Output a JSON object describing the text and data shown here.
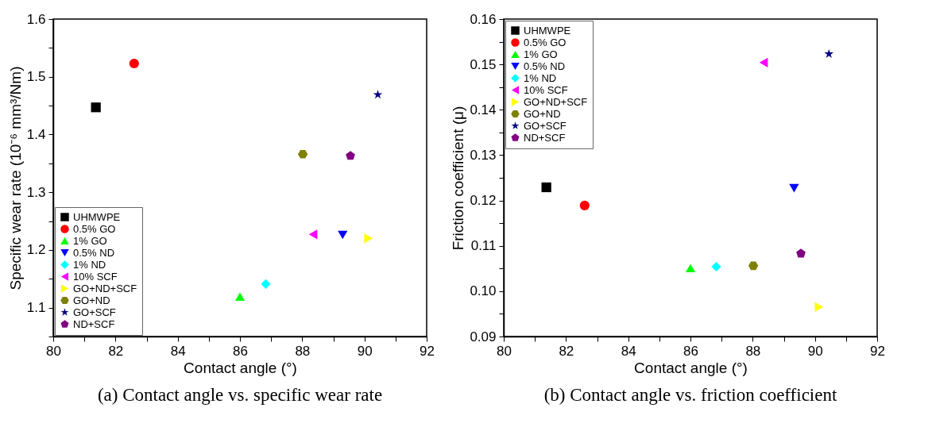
{
  "chart_data": [
    {
      "type": "scatter",
      "xlabel": "Contact angle (°)",
      "ylabel": "Specific wear rate (10⁻⁶ mm³/Nm)",
      "annotations": [
        "(a) Contact angle vs. specific wear rate"
      ],
      "xlim": [
        80,
        92
      ],
      "xticks": [
        80,
        {
          "value": 81,
          "label": null
        },
        82,
        {
          "value": 83,
          "label": null
        },
        84,
        {
          "value": 85,
          "label": null
        },
        86,
        {
          "value": 87,
          "label": null
        },
        88,
        {
          "value": 89,
          "label": null
        },
        90,
        {
          "value": 91,
          "label": null
        },
        92
      ],
      "ylim": [
        1.05,
        1.6
      ],
      "yticks": [
        {
          "value": 1.05,
          "label": null
        },
        1.1,
        {
          "value": 1.15,
          "label": null
        },
        1.2,
        {
          "value": 1.25,
          "label": null
        },
        1.3,
        {
          "value": 1.35,
          "label": null
        },
        1.4,
        {
          "value": 1.45,
          "label": null
        },
        1.5,
        {
          "value": 1.55,
          "label": null
        },
        1.6
      ],
      "grid": false,
      "legend": "bottom left",
      "series": [
        {
          "name": "UHMWPE",
          "color": "#000000",
          "marker": "square",
          "x": [
            81.37
          ],
          "values": [
            1.447
          ]
        },
        {
          "name": "0.5% GO",
          "color": "#ff0000",
          "marker": "circle",
          "x": [
            82.6
          ],
          "values": [
            1.523
          ]
        },
        {
          "name": "1% GO",
          "color": "#00ff00",
          "marker": "triangle-up",
          "x": [
            86.0
          ],
          "values": [
            1.119
          ]
        },
        {
          "name": "0.5% ND",
          "color": "#0000ff",
          "marker": "triangle-down",
          "x": [
            89.3
          ],
          "values": [
            1.226
          ]
        },
        {
          "name": "1% ND",
          "color": "#00ffff",
          "marker": "diamond",
          "x": [
            86.83
          ],
          "values": [
            1.141
          ]
        },
        {
          "name": "10% SCF",
          "color": "#ff00ff",
          "marker": "triangle-left",
          "x": [
            88.35
          ],
          "values": [
            1.227
          ]
        },
        {
          "name": "GO+ND+SCF",
          "color": "#ffff00",
          "marker": "triangle-right",
          "x": [
            90.13
          ],
          "values": [
            1.22
          ]
        },
        {
          "name": "GO+ND",
          "color": "#808000",
          "x": [
            88.02
          ],
          "values": [
            1.366
          ]
        },
        {
          "name": "GO+SCF",
          "color": "#000080",
          "marker": "star",
          "x": [
            90.43
          ],
          "values": [
            1.469
          ]
        },
        {
          "name": "ND+SCF",
          "color": "#800080",
          "x": [
            89.55
          ],
          "values": [
            1.363
          ]
        }
      ]
    },
    {
      "type": "scatter",
      "xlabel": "Contact angle (°)",
      "ylabel": "Friction  coefficient (μ)",
      "annotations": [
        "(b) Contact angle vs. friction coefficient"
      ],
      "xlim": [
        80,
        92
      ],
      "xticks": [
        80,
        {
          "value": 81,
          "label": null
        },
        82,
        {
          "value": 83,
          "label": null
        },
        84,
        {
          "value": 85,
          "label": null
        },
        86,
        {
          "value": 87,
          "label": null
        },
        88,
        {
          "value": 89,
          "label": null
        },
        90,
        {
          "value": 91,
          "label": null
        },
        92
      ],
      "ylim": [
        0.09,
        0.16
      ],
      "yticks": [
        {
          "value": 0.09,
          "label": "0.09"
        },
        {
          "value": 0.095,
          "label": null
        },
        {
          "value": 0.1,
          "label": "0.10"
        },
        {
          "value": 0.105,
          "label": null
        },
        0.11,
        {
          "value": 0.115,
          "label": null
        },
        {
          "value": 0.12,
          "label": "0.12"
        },
        {
          "value": 0.125,
          "label": null
        },
        0.13,
        {
          "value": 0.135,
          "label": null
        },
        0.14,
        {
          "value": 0.145,
          "label": null
        },
        0.15,
        {
          "value": 0.155,
          "label": null
        },
        0.16
      ],
      "grid": false,
      "legend": "top left",
      "series": [
        {
          "name": "UHMWPE",
          "color": "#000000",
          "marker": "square",
          "x": [
            81.37
          ],
          "values": [
            0.1229
          ]
        },
        {
          "name": "0.5% GO",
          "color": "#ff0000",
          "marker": "circle",
          "x": [
            82.6
          ],
          "values": [
            0.1189
          ]
        },
        {
          "name": "1% GO",
          "color": "#00ff00",
          "marker": "triangle-up",
          "x": [
            86.0
          ],
          "values": [
            0.1051
          ]
        },
        {
          "name": "0.5% ND",
          "color": "#0000ff",
          "marker": "triangle-down",
          "x": [
            89.33
          ],
          "values": [
            0.1227
          ]
        },
        {
          "name": "1% ND",
          "color": "#00ffff",
          "marker": "diamond",
          "x": [
            86.83
          ],
          "values": [
            0.1054
          ]
        },
        {
          "name": "10% SCF",
          "color": "#ff00ff",
          "marker": "triangle-left",
          "x": [
            88.35
          ],
          "values": [
            0.1504
          ]
        },
        {
          "name": "GO+ND+SCF",
          "color": "#ffff00",
          "marker": "triangle-right",
          "x": [
            90.13
          ],
          "values": [
            0.0965
          ]
        },
        {
          "name": "GO+ND",
          "color": "#808000",
          "x": [
            88.02
          ],
          "values": [
            0.1056
          ]
        },
        {
          "name": "GO+SCF",
          "color": "#000080",
          "marker": "star",
          "x": [
            90.45
          ],
          "values": [
            0.1523
          ]
        },
        {
          "name": "ND+SCF",
          "color": "#800080",
          "x": [
            89.55
          ],
          "values": [
            0.1083
          ]
        }
      ]
    }
  ]
}
